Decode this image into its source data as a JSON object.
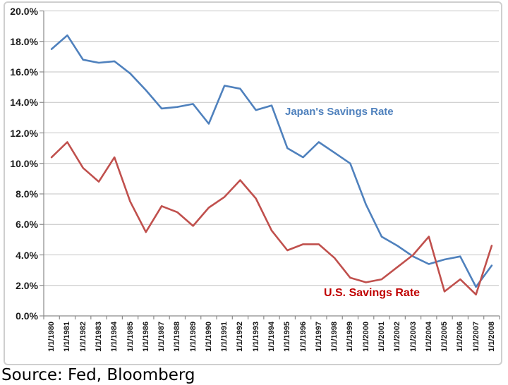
{
  "chart_data": {
    "type": "line",
    "title": "",
    "categories": [
      "1/1/1980",
      "1/1/1981",
      "1/1/1982",
      "1/1/1983",
      "1/1/1984",
      "1/1/1985",
      "1/1/1986",
      "1/1/1987",
      "1/1/1988",
      "1/1/1989",
      "1/1/1990",
      "1/1/1991",
      "1/1/1992",
      "1/1/1993",
      "1/1/1994",
      "1/1/1995",
      "1/1/1996",
      "1/1/1997",
      "1/1/1998",
      "1/1/1999",
      "1/1/2000",
      "1/1/2001",
      "1/1/2002",
      "1/1/2003",
      "1/1/2004",
      "1/1/2005",
      "1/1/2006",
      "1/1/2007",
      "1/1/2008"
    ],
    "series": [
      {
        "name": "Japan's Savings Rate",
        "color": "#4F81BD",
        "values": [
          17.5,
          18.4,
          16.8,
          16.6,
          16.7,
          15.9,
          14.8,
          13.6,
          13.7,
          13.9,
          12.6,
          15.1,
          14.9,
          13.5,
          13.8,
          11.0,
          10.4,
          11.4,
          10.7,
          10.0,
          7.3,
          5.2,
          4.6,
          3.9,
          3.4,
          3.7,
          3.9,
          1.9,
          3.3
        ]
      },
      {
        "name": "U.S. Savings Rate",
        "color": "#C0504D",
        "values": [
          10.4,
          11.4,
          9.7,
          8.8,
          10.4,
          7.5,
          5.5,
          7.2,
          6.8,
          5.9,
          7.1,
          7.8,
          8.9,
          7.7,
          5.6,
          4.3,
          4.7,
          4.7,
          3.8,
          2.5,
          2.2,
          2.4,
          3.2,
          4.0,
          5.2,
          1.6,
          2.4,
          1.4,
          4.6
        ]
      }
    ],
    "xlabel": "",
    "ylabel": "",
    "ylim": [
      0,
      20
    ],
    "y_tick_step": 2,
    "y_tick_labels": [
      "0.0%",
      "2.0%",
      "4.0%",
      "6.0%",
      "8.0%",
      "10.0%",
      "12.0%",
      "14.0%",
      "16.0%",
      "18.0%",
      "20.0%"
    ],
    "grid": "horizontal",
    "legend_position": "none"
  },
  "annotations": {
    "japan_label": {
      "text": "Japan's Savings Rate",
      "color": "#4F81BD"
    },
    "us_label": {
      "text": "U.S. Savings Rate",
      "color": "#C00000"
    }
  },
  "footer": {
    "source_text": "Source: Fed, Bloomberg"
  },
  "style_colors": {
    "gridline": "#C3C3C3",
    "axis": "#8A8A8A",
    "tick_text": "#1A1A1A",
    "frame_border": "#CFCFCF"
  }
}
